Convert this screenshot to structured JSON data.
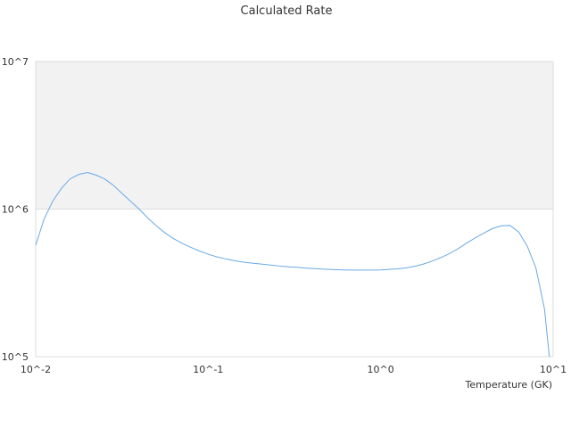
{
  "chart_data": {
    "type": "line",
    "title": "Calculated Rate",
    "xlabel": "Temperature (GK)",
    "ylabel": "",
    "xscale": "log",
    "yscale": "log",
    "xlim": [
      0.01,
      10
    ],
    "ylim": [
      100000,
      10000000
    ],
    "x_tick_labels": [
      "10^-2",
      "10^-1",
      "10^0",
      "10^1"
    ],
    "y_tick_labels": [
      "10^5",
      "10^6",
      "10^7"
    ],
    "grid": true,
    "shaded_band": [
      1000000,
      10000000
    ],
    "colors": {
      "line": "#6aa9e6",
      "band": "#f2f2f2",
      "grid": "#dddddd"
    },
    "series": [
      {
        "x": [
          0.01,
          0.0112,
          0.0126,
          0.0141,
          0.0158,
          0.0178,
          0.02,
          0.0224,
          0.0251,
          0.0282,
          0.0316,
          0.0355,
          0.0398,
          0.0447,
          0.0501,
          0.0562,
          0.0631,
          0.0708,
          0.0794,
          0.0891,
          0.1,
          0.112,
          0.126,
          0.141,
          0.158,
          0.178,
          0.2,
          0.224,
          0.251,
          0.282,
          0.316,
          0.355,
          0.398,
          0.447,
          0.501,
          0.562,
          0.631,
          0.708,
          0.794,
          0.891,
          1.0,
          1.12,
          1.26,
          1.41,
          1.58,
          1.78,
          2.0,
          2.24,
          2.51,
          2.82,
          3.16,
          3.55,
          3.98,
          4.47,
          5.01,
          5.62,
          6.31,
          7.08,
          7.94,
          8.91,
          9.5
        ],
        "y": [
          570000,
          860000,
          1140000,
          1380000,
          1600000,
          1720000,
          1770000,
          1700000,
          1600000,
          1450000,
          1280000,
          1130000,
          1000000,
          870000,
          770000,
          690000,
          630000,
          585000,
          550000,
          520000,
          495000,
          475000,
          460000,
          448000,
          438000,
          431000,
          425000,
          419000,
          413000,
          408000,
          404000,
          400000,
          396000,
          393000,
          390000,
          388000,
          387000,
          386000,
          386000,
          386000,
          387000,
          390000,
          394000,
          400000,
          410000,
          425000,
          445000,
          470000,
          500000,
          540000,
          590000,
          640000,
          690000,
          740000,
          770000,
          775000,
          700000,
          560000,
          400000,
          210000,
          100000
        ]
      }
    ]
  }
}
